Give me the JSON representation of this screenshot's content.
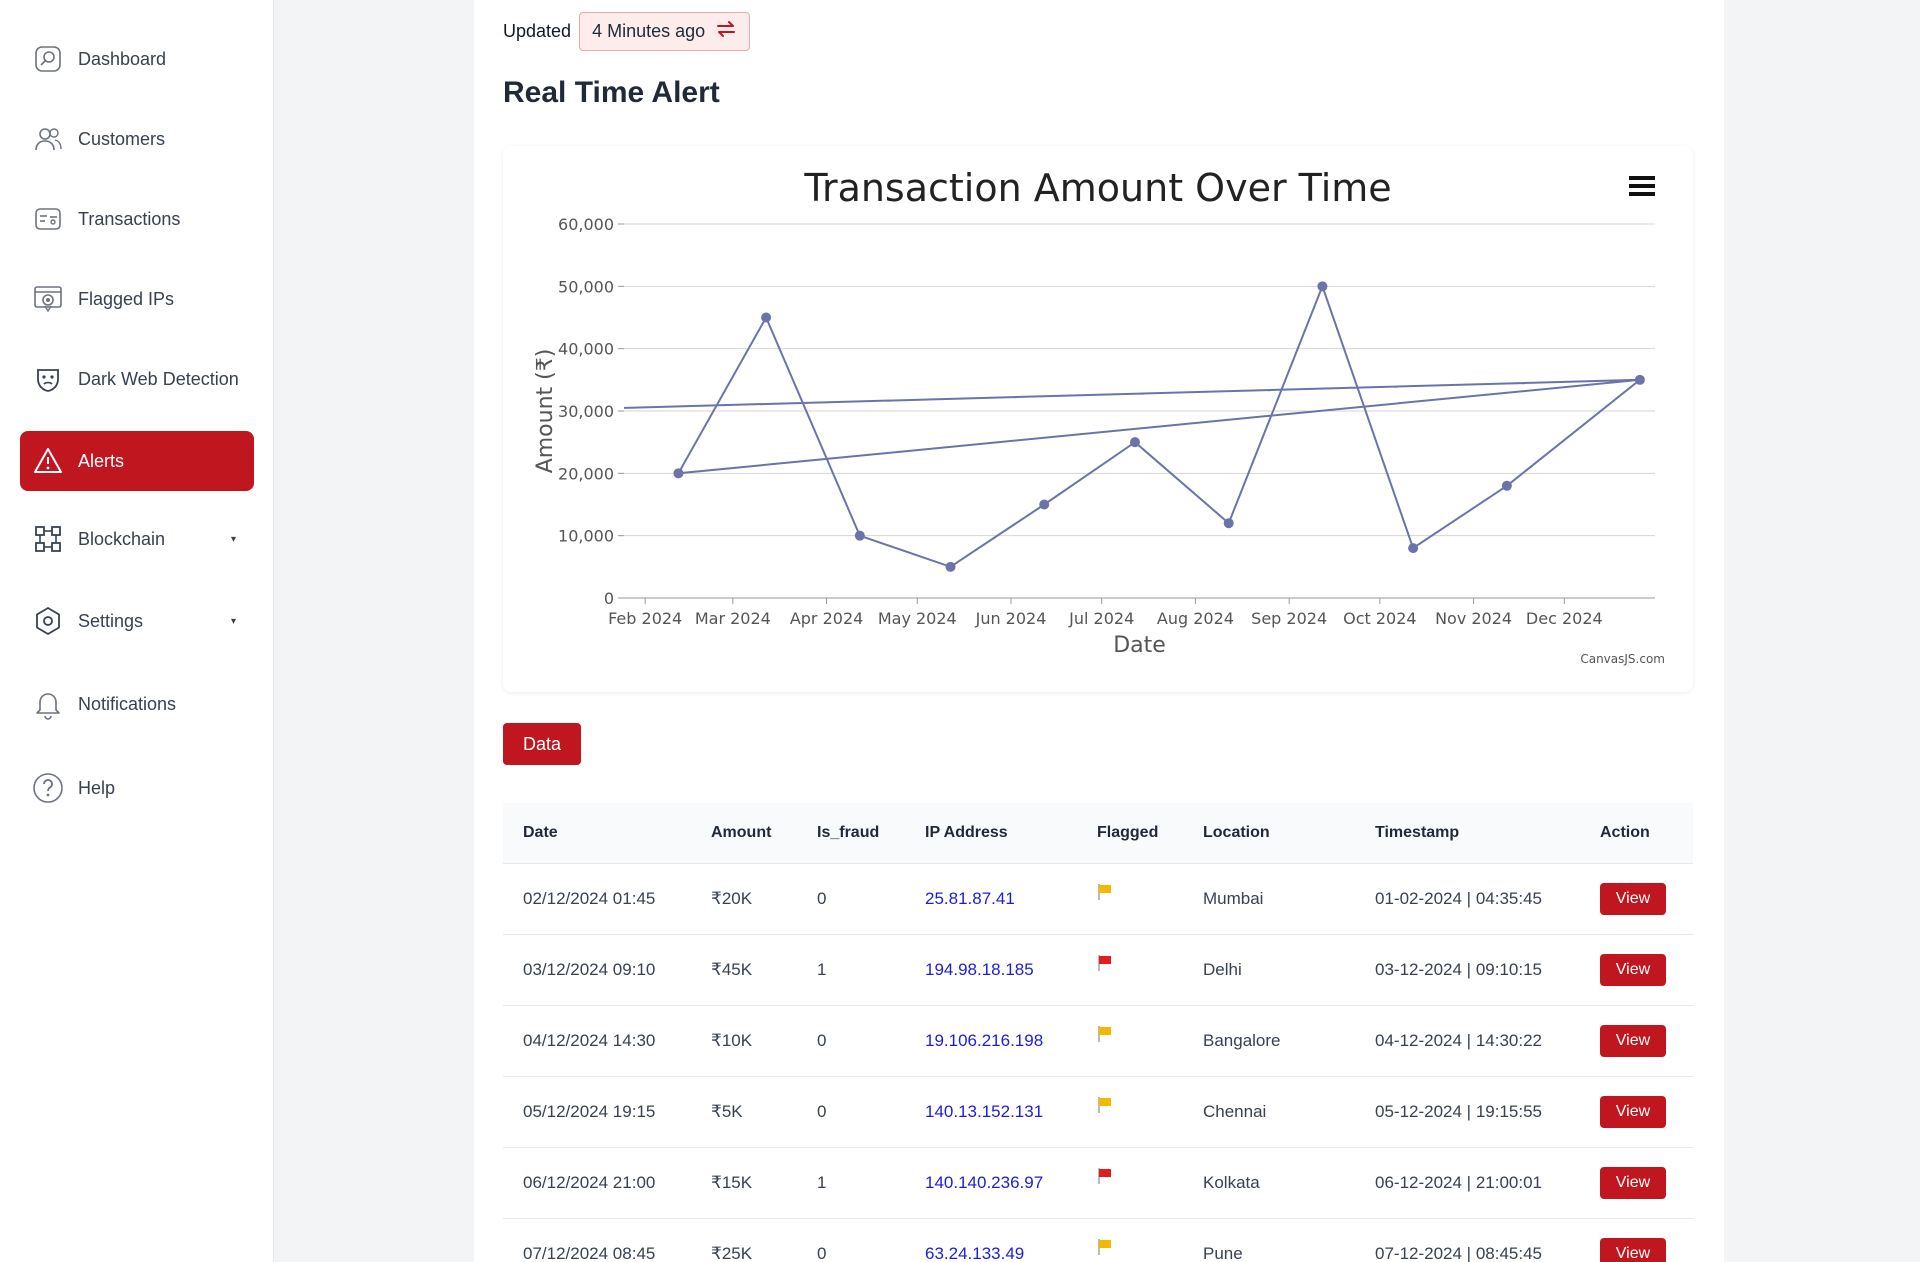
{
  "sidebar": {
    "items": [
      {
        "label": "Dashboard",
        "icon": "dashboard-icon"
      },
      {
        "label": "Customers",
        "icon": "customers-icon"
      },
      {
        "label": "Transactions",
        "icon": "transactions-icon"
      },
      {
        "label": "Flagged IPs",
        "icon": "flagged-ip-icon"
      },
      {
        "label": "Dark Web Detection",
        "icon": "dark-web-icon"
      },
      {
        "label": "Alerts",
        "icon": "alert-triangle-icon",
        "active": true
      },
      {
        "label": "Blockchain",
        "icon": "blockchain-icon",
        "caret": "▾"
      },
      {
        "label": "Settings",
        "icon": "settings-icon",
        "caret": "▾"
      },
      {
        "label": "Notifications",
        "icon": "bell-icon"
      },
      {
        "label": "Help",
        "icon": "help-icon"
      }
    ]
  },
  "header": {
    "updated_label": "Updated",
    "updated_value": "4 Minutes ago",
    "title": "Real Time Alert"
  },
  "colors": {
    "accent": "#c0161f",
    "series": "#6b74a8",
    "flag_yellow": "#f5b800",
    "flag_red": "#e01e1e",
    "ip_link": "#1d1dd8"
  },
  "chart_data": {
    "type": "line",
    "title": "Transaction Amount Over Time",
    "xlabel": "Date",
    "ylabel": "Amount (₹)",
    "credit": "CanvasJS.com",
    "x_ticks": [
      "Feb 2024",
      "Mar 2024",
      "Apr 2024",
      "May 2024",
      "Jun 2024",
      "Jul 2024",
      "Aug 2024",
      "Sep 2024",
      "Oct 2024",
      "Nov 2024",
      "Dec 2024"
    ],
    "y_ticks": [
      "0",
      "10,000",
      "20,000",
      "30,000",
      "40,000",
      "50,000",
      "60,000"
    ],
    "ylim": [
      0,
      60000
    ],
    "xlim": [
      "2024-01-25",
      "2024-12-31"
    ],
    "grid": true,
    "series": [
      {
        "points": [
          {
            "x": "2024-01-25",
            "y": 30500
          },
          {
            "x": "2024-12-26",
            "y": 35000
          },
          {
            "x": "2024-02-12",
            "y": 20000
          },
          {
            "x": "2024-03-12",
            "y": 45000
          },
          {
            "x": "2024-04-12",
            "y": 10000
          },
          {
            "x": "2024-05-12",
            "y": 5000
          },
          {
            "x": "2024-06-12",
            "y": 15000
          },
          {
            "x": "2024-07-12",
            "y": 25000
          },
          {
            "x": "2024-08-12",
            "y": 12000
          },
          {
            "x": "2024-09-12",
            "y": 50000
          },
          {
            "x": "2024-10-12",
            "y": 8000
          },
          {
            "x": "2024-11-12",
            "y": 18000
          },
          {
            "x": "2024-12-26",
            "y": 35000
          }
        ]
      }
    ]
  },
  "data_button": "Data",
  "table": {
    "headers": [
      "Date",
      "Amount",
      "Is_fraud",
      "IP Address",
      "Flagged",
      "Location",
      "Timestamp",
      "Action"
    ],
    "rows": [
      {
        "date": "02/12/2024 01:45",
        "amount": "₹20K",
        "is_fraud": "0",
        "ip": "25.81.87.41",
        "flag": "yellow",
        "location": "Mumbai",
        "timestamp": "01-02-2024 | 04:35:45",
        "action": "View"
      },
      {
        "date": "03/12/2024 09:10",
        "amount": "₹45K",
        "is_fraud": "1",
        "ip": "194.98.18.185",
        "flag": "red",
        "location": "Delhi",
        "timestamp": "03-12-2024 | 09:10:15",
        "action": "View"
      },
      {
        "date": "04/12/2024 14:30",
        "amount": "₹10K",
        "is_fraud": "0",
        "ip": "19.106.216.198",
        "flag": "yellow",
        "location": "Bangalore",
        "timestamp": "04-12-2024 | 14:30:22",
        "action": "View"
      },
      {
        "date": "05/12/2024 19:15",
        "amount": "₹5K",
        "is_fraud": "0",
        "ip": "140.13.152.131",
        "flag": "yellow",
        "location": "Chennai",
        "timestamp": "05-12-2024 | 19:15:55",
        "action": "View"
      },
      {
        "date": "06/12/2024 21:00",
        "amount": "₹15K",
        "is_fraud": "1",
        "ip": "140.140.236.97",
        "flag": "red",
        "location": "Kolkata",
        "timestamp": "06-12-2024 | 21:00:01",
        "action": "View"
      },
      {
        "date": "07/12/2024 08:45",
        "amount": "₹25K",
        "is_fraud": "0",
        "ip": "63.24.133.49",
        "flag": "yellow",
        "location": "Pune",
        "timestamp": "07-12-2024 | 08:45:45",
        "action": "View"
      }
    ]
  }
}
